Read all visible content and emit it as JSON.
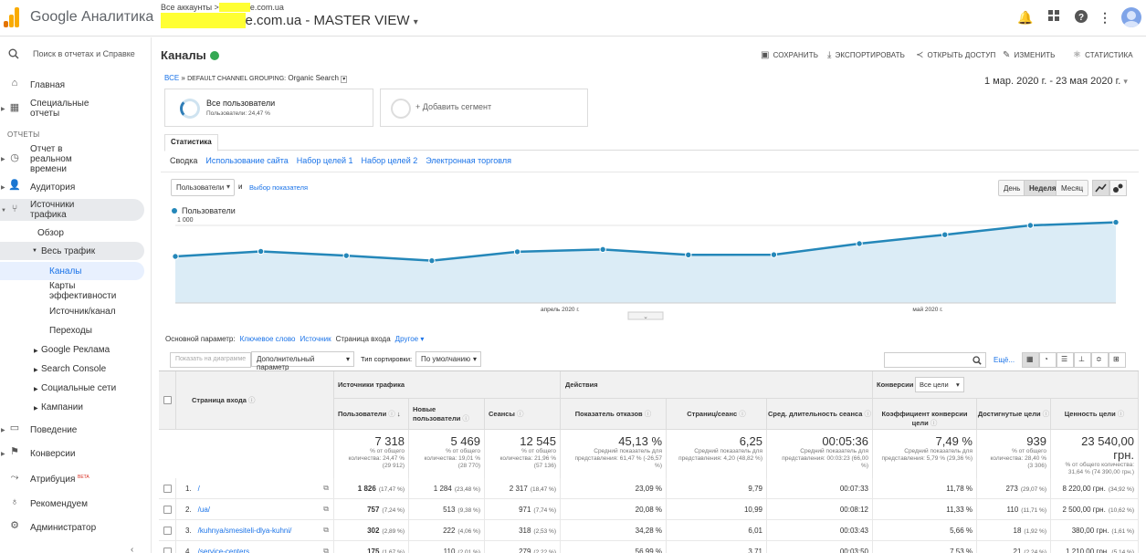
{
  "app": {
    "title": "Google Аналитика",
    "breadcrumb": "Все аккаунты >",
    "breadcrumb_domain": "e.com.ua",
    "view_hidden": "xxxxxxx",
    "view_title": "e.com.ua - MASTER VIEW"
  },
  "sidebar": {
    "search_placeholder": "Поиск в отчетах и Справке",
    "section_reports": "ОТЧЕТЫ",
    "items": [
      {
        "label": "Главная"
      },
      {
        "label": "Специальные отчеты"
      },
      {
        "label": "Отчет в реальном времени"
      },
      {
        "label": "Аудитория"
      },
      {
        "label": "Источники трафика"
      },
      {
        "label": "Обзор"
      },
      {
        "label": "Весь трафик"
      },
      {
        "label": "Каналы"
      },
      {
        "label": "Карты эффективности"
      },
      {
        "label": "Источник/канал"
      },
      {
        "label": "Переходы"
      },
      {
        "label": "Google Реклама"
      },
      {
        "label": "Search Console"
      },
      {
        "label": "Социальные сети"
      },
      {
        "label": "Кампании"
      },
      {
        "label": "Поведение"
      },
      {
        "label": "Конверсии"
      },
      {
        "label": "Атрибуция"
      },
      {
        "label": "Рекомендуем"
      },
      {
        "label": "Администратор"
      }
    ],
    "beta": "BETA"
  },
  "header": {
    "title": "Каналы",
    "actions": [
      "СОХРАНИТЬ",
      "ЭКСПОРТИРОВАТЬ",
      "ОТКРЫТЬ ДОСТУП",
      "ИЗМЕНИТЬ",
      "СТАТИСТИКА"
    ],
    "date_range": "1 мар. 2020 г. - 23 мая 2020 г.",
    "crumb_all": "ВСЕ",
    "crumb_sep": "»",
    "crumb_group": "DEFAULT CHANNEL GROUPING:",
    "crumb_value": "Organic Search"
  },
  "segments": {
    "seg1_title": "Все пользователи",
    "seg1_sub": "Пользователи: 24,47 %",
    "add": "+ Добавить сегмент"
  },
  "tabs": {
    "main": "Статистика",
    "sub": [
      "Сводка",
      "Использование сайта",
      "Набор целей 1",
      "Набор целей 2",
      "Электронная торговля"
    ]
  },
  "chart_controls": {
    "metric": "Пользователи",
    "and": "и",
    "pick": "Выбор показателя",
    "granularity": [
      "День",
      "Неделя",
      "Месяц"
    ]
  },
  "chart_data": {
    "type": "area",
    "series": [
      {
        "name": "Пользователи",
        "values": [
          600,
          665,
          610,
          545,
          660,
          690,
          620,
          622,
          765,
          880,
          1000,
          1040
        ]
      }
    ],
    "ylim": [
      0,
      1200
    ],
    "yticks": [
      "1 000",
      "500"
    ],
    "xticks": [
      "апрель 2020 г.",
      "май 2020 г."
    ],
    "color": "#2487b9"
  },
  "table_toolbar": {
    "primary_label": "Основной параметр:",
    "primary_opts": [
      "Ключевое слово",
      "Источник",
      "Страница входа",
      "Другое ▾"
    ],
    "show_chart": "Показать на диаграмме",
    "secondary": "Дополнительный параметр",
    "sort_label": "Тип сортировки:",
    "sort_value": "По умолчанию",
    "more": "Ещё..."
  },
  "table": {
    "group_traffic": "Источники трафика",
    "group_actions": "Действия",
    "group_conv": "Конверсии",
    "conv_select": "Все цели",
    "col_page": "Страница входа",
    "columns": [
      "Пользователи",
      "Новые пользователи",
      "Сеансы",
      "Показатель отказов",
      "Страниц/сеанс",
      "Сред. длительность сеанса",
      "Коэффициент конверсии цели",
      "Достигнутые цели",
      "Ценность цели"
    ],
    "totals": [
      {
        "v": "7 318",
        "s": "% от общего количества: 24,47 % (29 912)"
      },
      {
        "v": "5 469",
        "s": "% от общего количества: 19,01 % (28 770)"
      },
      {
        "v": "12 545",
        "s": "% от общего количества: 21,96 % (57 136)"
      },
      {
        "v": "45,13 %",
        "s": "Средний показатель для представления: 61,47 % (-26,57 %)"
      },
      {
        "v": "6,25",
        "s": "Средний показатель для представления: 4,20 (48,82 %)"
      },
      {
        "v": "00:05:36",
        "s": "Средний показатель для представления: 00:03:23 (66,00 %)"
      },
      {
        "v": "7,49 %",
        "s": "Средний показатель для представления: 5,79 % (29,36 %)"
      },
      {
        "v": "939",
        "s": "% от общего количества: 28,40 % (3 306)"
      },
      {
        "v": "23 540,00 грн.",
        "s": "% от общего количества: 31,64 % (74 390,00 грн.)"
      }
    ],
    "rows": [
      {
        "n": "1.",
        "page": "/",
        "c": [
          "1 826",
          "1 284",
          "2 317",
          "23,09 %",
          "9,79",
          "00:07:33",
          "11,78 %",
          "273",
          "8 220,00 грн."
        ],
        "p": [
          "(17,47 %)",
          "(23,48 %)",
          "(18,47 %)",
          "",
          "",
          "",
          "",
          "(29,07 %)",
          "(34,92 %)"
        ]
      },
      {
        "n": "2.",
        "page": "/ua/",
        "c": [
          "757",
          "513",
          "971",
          "20,08 %",
          "10,99",
          "00:08:12",
          "11,33 %",
          "110",
          "2 500,00 грн."
        ],
        "p": [
          "(7,24 %)",
          "(9,38 %)",
          "(7,74 %)",
          "",
          "",
          "",
          "",
          "(11,71 %)",
          "(10,62 %)"
        ]
      },
      {
        "n": "3.",
        "page": "/kuhnya/smesiteli-dlya-kuhni/",
        "c": [
          "302",
          "222",
          "318",
          "34,28 %",
          "6,01",
          "00:03:43",
          "5,66 %",
          "18",
          "380,00 грн."
        ],
        "p": [
          "(2,89 %)",
          "(4,06 %)",
          "(2,53 %)",
          "",
          "",
          "",
          "",
          "(1,92 %)",
          "(1,61 %)"
        ]
      },
      {
        "n": "4.",
        "page": "/service-centers",
        "c": [
          "175",
          "110",
          "279",
          "56,99 %",
          "3,71",
          "00:03:50",
          "7,53 %",
          "21",
          "1 210,00 грн."
        ],
        "p": [
          "(1,67 %)",
          "(2,01 %)",
          "(2,22 %)",
          "",
          "",
          "",
          "",
          "(2,24 %)",
          "(5,14 %)"
        ]
      }
    ]
  }
}
